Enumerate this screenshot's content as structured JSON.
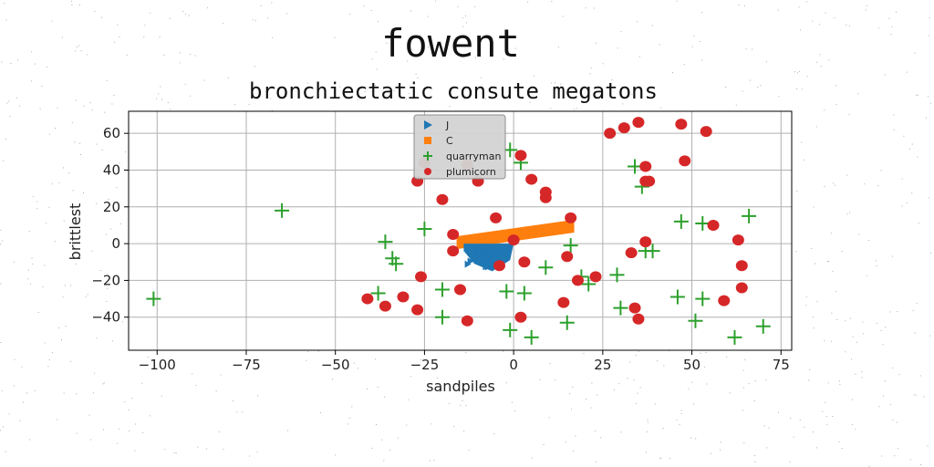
{
  "chart_data": {
    "type": "scatter",
    "title": "fowent",
    "subtitle": "bronchiectatic consute megatons",
    "xlabel": "sandpiles",
    "ylabel": "brittlest",
    "xlim": [
      -108,
      78
    ],
    "ylim": [
      -58,
      72
    ],
    "xticks": [
      -100,
      -75,
      -50,
      -25,
      0,
      25,
      50,
      75
    ],
    "yticks": [
      -40,
      -20,
      0,
      20,
      40,
      60
    ],
    "grid": true,
    "legend_position": "top-center",
    "series": [
      {
        "name": "J",
        "marker": "triangle-right",
        "color": "#1f77b4",
        "region": "wedge cluster",
        "x_range": [
          -14,
          0
        ],
        "y_range": [
          -15,
          0
        ]
      },
      {
        "name": "C",
        "marker": "square",
        "color": "#ff7f0e",
        "region": "band",
        "band": {
          "x_start": -16,
          "x_end": 17,
          "y_start_low": -3,
          "y_start_high": 4,
          "y_end_low": 6,
          "y_end_high": 13
        }
      },
      {
        "name": "quarryman",
        "marker": "plus",
        "color": "#2ca02c",
        "points": [
          [
            -101,
            -30
          ],
          [
            -65,
            18
          ],
          [
            -36,
            1
          ],
          [
            -34,
            -8
          ],
          [
            -33,
            -11
          ],
          [
            -38,
            -27
          ],
          [
            -25,
            8
          ],
          [
            -20,
            -25
          ],
          [
            -20,
            -40
          ],
          [
            -2,
            -26
          ],
          [
            -1,
            51
          ],
          [
            2,
            44
          ],
          [
            3,
            -27
          ],
          [
            5,
            -51
          ],
          [
            -1,
            -47
          ],
          [
            9,
            -13
          ],
          [
            15,
            -43
          ],
          [
            16,
            -1
          ],
          [
            19,
            -18
          ],
          [
            21,
            -22
          ],
          [
            29,
            -17
          ],
          [
            30,
            -35
          ],
          [
            34,
            42
          ],
          [
            36,
            31
          ],
          [
            37,
            -4
          ],
          [
            39,
            -4
          ],
          [
            46,
            -29
          ],
          [
            47,
            12
          ],
          [
            51,
            -42
          ],
          [
            53,
            -30
          ],
          [
            53,
            11
          ],
          [
            62,
            -51
          ],
          [
            66,
            15
          ],
          [
            70,
            -45
          ]
        ]
      },
      {
        "name": "plumicorn",
        "marker": "circle",
        "color": "#d62728",
        "points": [
          [
            -41,
            -30
          ],
          [
            -36,
            -34
          ],
          [
            -31,
            -29
          ],
          [
            -27,
            -36
          ],
          [
            -26,
            -18
          ],
          [
            -27,
            34
          ],
          [
            -25,
            44
          ],
          [
            -20,
            24
          ],
          [
            -17,
            5
          ],
          [
            -17,
            -4
          ],
          [
            -15,
            -25
          ],
          [
            -13,
            -42
          ],
          [
            -13,
            43
          ],
          [
            -10,
            34
          ],
          [
            -5,
            14
          ],
          [
            -4,
            -12
          ],
          [
            0,
            2
          ],
          [
            2,
            48
          ],
          [
            2,
            -40
          ],
          [
            3,
            -10
          ],
          [
            5,
            35
          ],
          [
            9,
            28
          ],
          [
            9,
            25
          ],
          [
            14,
            -32
          ],
          [
            15,
            -7
          ],
          [
            16,
            14
          ],
          [
            18,
            -20
          ],
          [
            23,
            -18
          ],
          [
            27,
            60
          ],
          [
            31,
            63
          ],
          [
            34,
            -35
          ],
          [
            35,
            66
          ],
          [
            35,
            -41
          ],
          [
            33,
            -5
          ],
          [
            37,
            42
          ],
          [
            37,
            1
          ],
          [
            37,
            34
          ],
          [
            38,
            34
          ],
          [
            47,
            65
          ],
          [
            48,
            45
          ],
          [
            54,
            61
          ],
          [
            56,
            10
          ],
          [
            59,
            -31
          ],
          [
            63,
            2
          ],
          [
            64,
            -12
          ],
          [
            64,
            -24
          ]
        ]
      }
    ]
  }
}
